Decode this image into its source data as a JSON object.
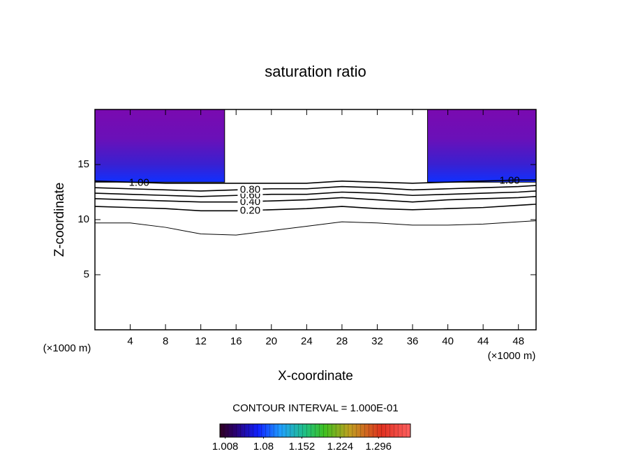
{
  "chart_data": {
    "type": "contour",
    "title": "saturation ratio",
    "x_label": "X-coordinate",
    "y_label": "Z-coordinate",
    "x_unit": "(×1000 m)",
    "y_unit": "(×1000 m)",
    "contour_interval": "CONTOUR INTERVAL = 1.000E-01",
    "xlim": [
      0,
      50
    ],
    "ylim": [
      0,
      20
    ],
    "xticks": [
      4,
      8,
      12,
      16,
      20,
      24,
      28,
      32,
      36,
      40,
      44,
      48
    ],
    "yticks": [
      5,
      10,
      15
    ],
    "x": [
      0,
      4,
      8,
      12,
      16,
      20,
      24,
      28,
      32,
      36,
      40,
      44,
      48,
      50
    ],
    "contours": [
      {
        "level": 0.1,
        "values": [
          9.7,
          9.7,
          9.3,
          8.7,
          8.6,
          9.0,
          9.4,
          9.8,
          9.7,
          9.5,
          9.5,
          9.6,
          9.8,
          9.9
        ]
      },
      {
        "level": 0.2,
        "label": "0.20",
        "values": [
          11.2,
          11.1,
          11.0,
          10.8,
          10.8,
          10.9,
          11.0,
          11.2,
          11.0,
          10.9,
          11.0,
          11.1,
          11.3,
          11.4
        ]
      },
      {
        "level": 0.4,
        "label": "0.40",
        "values": [
          11.9,
          11.8,
          11.7,
          11.6,
          11.6,
          11.7,
          11.8,
          12.0,
          11.8,
          11.6,
          11.8,
          11.9,
          12.0,
          12.1
        ]
      },
      {
        "level": 0.6,
        "label": "0.60",
        "values": [
          12.4,
          12.3,
          12.2,
          12.1,
          12.2,
          12.3,
          12.3,
          12.5,
          12.4,
          12.2,
          12.3,
          12.4,
          12.5,
          12.6
        ]
      },
      {
        "level": 0.8,
        "label": "0.80",
        "values": [
          12.9,
          12.8,
          12.7,
          12.6,
          12.7,
          12.8,
          12.8,
          13.0,
          12.9,
          12.7,
          12.8,
          12.9,
          13.0,
          13.1
        ]
      },
      {
        "level": 1.0,
        "label": "1.00",
        "values": [
          13.5,
          13.4,
          13.3,
          13.3,
          13.3,
          13.3,
          13.3,
          13.5,
          13.4,
          13.3,
          13.4,
          13.5,
          13.6,
          13.6
        ]
      }
    ],
    "shaded_regions": [
      {
        "xlim": [
          0,
          14.7
        ],
        "ylim": [
          13.4,
          20
        ]
      },
      {
        "xlim": [
          37.7,
          50
        ],
        "ylim": [
          13.4,
          20
        ]
      }
    ],
    "colorbar": {
      "lim": [
        0.998,
        1.356
      ],
      "ticks": [
        1.008,
        1.08,
        1.152,
        1.224,
        1.296
      ]
    }
  }
}
